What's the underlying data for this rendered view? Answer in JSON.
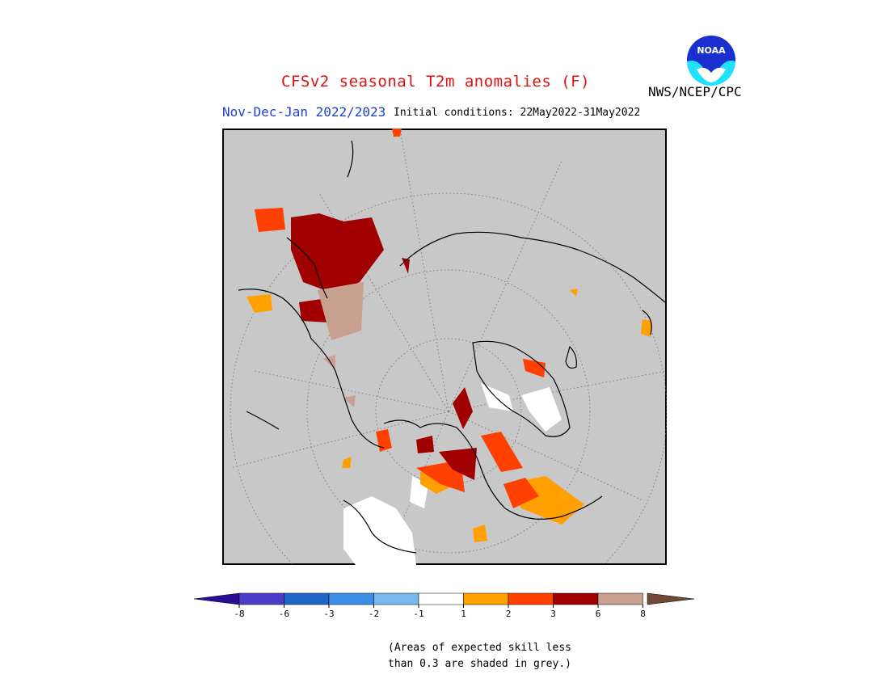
{
  "header": {
    "title": "CFSv2 seasonal T2m anomalies (F)",
    "season": "Nov-Dec-Jan 2022/2023",
    "initial_conditions": "Initial conditions: 22May2022-31May2022",
    "organization": "NWS/NCEP/CPC",
    "logo_text": "NOAA"
  },
  "legend": {
    "colors": [
      "#2a0e9a",
      "#4a3ec8",
      "#2066c8",
      "#3c8ee6",
      "#78b8f0",
      "#ffffff",
      "#ffa000",
      "#ff4000",
      "#a00000",
      "#c8a090",
      "#704838"
    ],
    "tick_labels": [
      "-8",
      "-6",
      "-3",
      "-2",
      "-1",
      "1",
      "2",
      "3",
      "6",
      "8"
    ]
  },
  "note": {
    "line1": "(Areas of expected skill less",
    "line2": "than 0.3 are shaded in grey.)"
  },
  "map_colors": {
    "background": "#c8c8c8",
    "anomaly_1_2": "#ffa000",
    "anomaly_2_3": "#ff4000",
    "anomaly_3_6": "#a00000",
    "anomaly_6_8": "#c8a090",
    "near_normal": "#ffffff"
  }
}
